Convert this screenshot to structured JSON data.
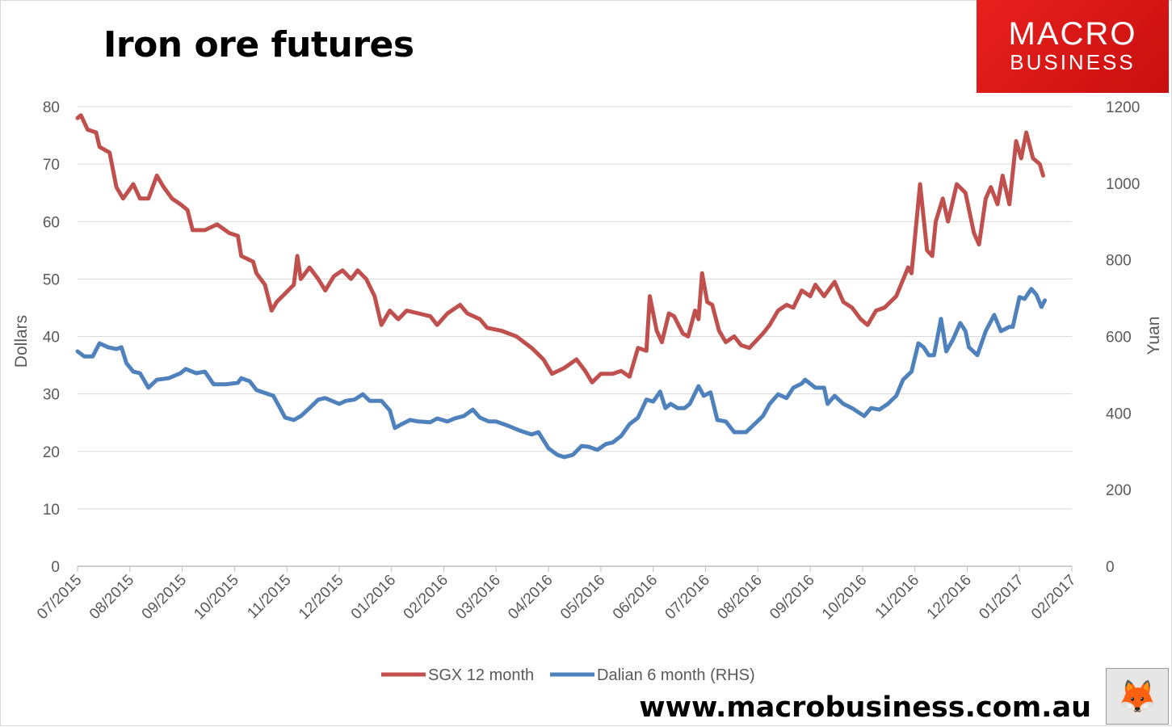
{
  "chart_data": {
    "type": "line",
    "title": "Iron ore futures",
    "ylabel": "Dollars",
    "y2label": "Yuan",
    "ylim": [
      0,
      80
    ],
    "y2lim": [
      0,
      1200
    ],
    "yticks": [
      0,
      10,
      20,
      30,
      40,
      50,
      60,
      70,
      80
    ],
    "y2ticks": [
      0,
      200,
      400,
      600,
      800,
      1000,
      1200
    ],
    "xlim": [
      "2015-07-01",
      "2017-02-01"
    ],
    "xticks": [
      "07/2015",
      "08/2015",
      "09/2015",
      "10/2015",
      "11/2015",
      "12/2015",
      "01/2016",
      "02/2016",
      "03/2016",
      "04/2016",
      "05/2016",
      "06/2016",
      "07/2016",
      "08/2016",
      "09/2016",
      "10/2016",
      "11/2016",
      "12/2016",
      "01/2017",
      "02/2017"
    ],
    "grid": true,
    "legend_position": "bottom",
    "series": [
      {
        "name": "SGX 12 month",
        "axis": "left",
        "color": "#c0504d",
        "points": [
          [
            "2015-07-01",
            78
          ],
          [
            "2015-07-03",
            78.5
          ],
          [
            "2015-07-07",
            76
          ],
          [
            "2015-07-12",
            75.5
          ],
          [
            "2015-07-14",
            73
          ],
          [
            "2015-07-20",
            72
          ],
          [
            "2015-07-24",
            66
          ],
          [
            "2015-07-28",
            64
          ],
          [
            "2015-08-03",
            66.5
          ],
          [
            "2015-08-07",
            64
          ],
          [
            "2015-08-12",
            64
          ],
          [
            "2015-08-17",
            68
          ],
          [
            "2015-08-21",
            66
          ],
          [
            "2015-08-26",
            64
          ],
          [
            "2015-08-31",
            63
          ],
          [
            "2015-09-04",
            62
          ],
          [
            "2015-09-07",
            58.5
          ],
          [
            "2015-09-14",
            58.5
          ],
          [
            "2015-09-21",
            59.5
          ],
          [
            "2015-09-28",
            58
          ],
          [
            "2015-10-03",
            57.5
          ],
          [
            "2015-10-05",
            54
          ],
          [
            "2015-10-12",
            53
          ],
          [
            "2015-10-14",
            51
          ],
          [
            "2015-10-19",
            49
          ],
          [
            "2015-10-23",
            44.5
          ],
          [
            "2015-10-26",
            46
          ],
          [
            "2015-10-31",
            47.5
          ],
          [
            "2015-11-05",
            49
          ],
          [
            "2015-11-07",
            54
          ],
          [
            "2015-11-09",
            50
          ],
          [
            "2015-11-14",
            52
          ],
          [
            "2015-11-19",
            50
          ],
          [
            "2015-11-23",
            48
          ],
          [
            "2015-11-28",
            50.5
          ],
          [
            "2015-12-03",
            51.5
          ],
          [
            "2015-12-08",
            50
          ],
          [
            "2015-12-12",
            51.5
          ],
          [
            "2015-12-17",
            50
          ],
          [
            "2015-12-22",
            47
          ],
          [
            "2015-12-26",
            42
          ],
          [
            "2015-12-31",
            44.5
          ],
          [
            "2016-01-05",
            43
          ],
          [
            "2016-01-10",
            44.5
          ],
          [
            "2016-01-17",
            44
          ],
          [
            "2016-01-24",
            43.5
          ],
          [
            "2016-01-28",
            42
          ],
          [
            "2016-02-03",
            44
          ],
          [
            "2016-02-10",
            45.5
          ],
          [
            "2016-02-14",
            44
          ],
          [
            "2016-02-21",
            43
          ],
          [
            "2016-02-25",
            41.5
          ],
          [
            "2016-03-04",
            41
          ],
          [
            "2016-03-13",
            40
          ],
          [
            "2016-03-22",
            38
          ],
          [
            "2016-03-29",
            36
          ],
          [
            "2016-04-03",
            33.5
          ],
          [
            "2016-04-10",
            34.5
          ],
          [
            "2016-04-17",
            36
          ],
          [
            "2016-04-22",
            34
          ],
          [
            "2016-04-26",
            32
          ],
          [
            "2016-05-01",
            33.5
          ],
          [
            "2016-05-08",
            33.5
          ],
          [
            "2016-05-13",
            34
          ],
          [
            "2016-05-18",
            33
          ],
          [
            "2016-05-23",
            38
          ],
          [
            "2016-05-28",
            37.5
          ],
          [
            "2016-05-30",
            47
          ],
          [
            "2016-06-03",
            41
          ],
          [
            "2016-06-06",
            39
          ],
          [
            "2016-06-10",
            44
          ],
          [
            "2016-06-13",
            43.5
          ],
          [
            "2016-06-18",
            40.5
          ],
          [
            "2016-06-21",
            40
          ],
          [
            "2016-06-25",
            44.5
          ],
          [
            "2016-06-27",
            43
          ],
          [
            "2016-06-29",
            51
          ],
          [
            "2016-07-02",
            46
          ],
          [
            "2016-07-05",
            45.5
          ],
          [
            "2016-07-09",
            41
          ],
          [
            "2016-07-13",
            39
          ],
          [
            "2016-07-18",
            40
          ],
          [
            "2016-07-22",
            38.5
          ],
          [
            "2016-07-27",
            38
          ],
          [
            "2016-08-04",
            40.5
          ],
          [
            "2016-08-08",
            42
          ],
          [
            "2016-08-13",
            44.5
          ],
          [
            "2016-08-18",
            45.5
          ],
          [
            "2016-08-22",
            45
          ],
          [
            "2016-08-27",
            48
          ],
          [
            "2016-09-01",
            47
          ],
          [
            "2016-09-04",
            49
          ],
          [
            "2016-09-09",
            47
          ],
          [
            "2016-09-15",
            49.5
          ],
          [
            "2016-09-20",
            46
          ],
          [
            "2016-09-25",
            45
          ],
          [
            "2016-09-30",
            43
          ],
          [
            "2016-10-04",
            42
          ],
          [
            "2016-10-09",
            44.5
          ],
          [
            "2016-10-14",
            45
          ],
          [
            "2016-10-21",
            47
          ],
          [
            "2016-10-28",
            52
          ],
          [
            "2016-10-30",
            51
          ],
          [
            "2016-11-04",
            66.5
          ],
          [
            "2016-11-08",
            55
          ],
          [
            "2016-11-11",
            54
          ],
          [
            "2016-11-13",
            60
          ],
          [
            "2016-11-17",
            64
          ],
          [
            "2016-11-20",
            60
          ],
          [
            "2016-11-25",
            66.5
          ],
          [
            "2016-11-30",
            65
          ],
          [
            "2016-12-05",
            58
          ],
          [
            "2016-12-08",
            56
          ],
          [
            "2016-12-12",
            64
          ],
          [
            "2016-12-15",
            66
          ],
          [
            "2016-12-19",
            63
          ],
          [
            "2016-12-22",
            68
          ],
          [
            "2016-12-26",
            63
          ],
          [
            "2016-12-30",
            74
          ],
          [
            "2017-01-02",
            71
          ],
          [
            "2017-01-05",
            75.5
          ],
          [
            "2017-01-09",
            71
          ],
          [
            "2017-01-13",
            70
          ],
          [
            "2017-01-15",
            68
          ]
        ]
      },
      {
        "name": "Dalian 6 month (RHS)",
        "axis": "right",
        "color": "#4f81bd",
        "points": [
          [
            "2015-07-01",
            561
          ],
          [
            "2015-07-05",
            548
          ],
          [
            "2015-07-10",
            548
          ],
          [
            "2015-07-14",
            582
          ],
          [
            "2015-07-19",
            572
          ],
          [
            "2015-07-24",
            567
          ],
          [
            "2015-07-27",
            572
          ],
          [
            "2015-07-30",
            530
          ],
          [
            "2015-08-03",
            508
          ],
          [
            "2015-08-07",
            504
          ],
          [
            "2015-08-12",
            466
          ],
          [
            "2015-08-17",
            487
          ],
          [
            "2015-08-24",
            491
          ],
          [
            "2015-08-31",
            504
          ],
          [
            "2015-09-03",
            515
          ],
          [
            "2015-09-09",
            504
          ],
          [
            "2015-09-14",
            508
          ],
          [
            "2015-09-19",
            475
          ],
          [
            "2015-09-26",
            475
          ],
          [
            "2015-10-03",
            479
          ],
          [
            "2015-10-05",
            491
          ],
          [
            "2015-10-10",
            483
          ],
          [
            "2015-10-14",
            460
          ],
          [
            "2015-10-24",
            445
          ],
          [
            "2015-10-31",
            388
          ],
          [
            "2015-11-05",
            382
          ],
          [
            "2015-11-09",
            392
          ],
          [
            "2015-11-14",
            413
          ],
          [
            "2015-11-19",
            435
          ],
          [
            "2015-11-23",
            439
          ],
          [
            "2015-12-01",
            424
          ],
          [
            "2015-12-05",
            432
          ],
          [
            "2015-12-10",
            435
          ],
          [
            "2015-12-15",
            449
          ],
          [
            "2015-12-19",
            432
          ],
          [
            "2015-12-26",
            432
          ],
          [
            "2015-12-31",
            407
          ],
          [
            "2016-01-03",
            361
          ],
          [
            "2016-01-07",
            371
          ],
          [
            "2016-01-12",
            382
          ],
          [
            "2016-01-17",
            378
          ],
          [
            "2016-01-24",
            376
          ],
          [
            "2016-01-28",
            386
          ],
          [
            "2016-02-03",
            378
          ],
          [
            "2016-02-07",
            386
          ],
          [
            "2016-02-12",
            392
          ],
          [
            "2016-02-17",
            409
          ],
          [
            "2016-02-21",
            388
          ],
          [
            "2016-02-26",
            378
          ],
          [
            "2016-03-01",
            378
          ],
          [
            "2016-03-08",
            367
          ],
          [
            "2016-03-15",
            354
          ],
          [
            "2016-03-22",
            344
          ],
          [
            "2016-03-26",
            350
          ],
          [
            "2016-04-01",
            308
          ],
          [
            "2016-04-06",
            291
          ],
          [
            "2016-04-10",
            285
          ],
          [
            "2016-04-15",
            291
          ],
          [
            "2016-04-20",
            314
          ],
          [
            "2016-04-24",
            312
          ],
          [
            "2016-04-29",
            304
          ],
          [
            "2016-05-04",
            319
          ],
          [
            "2016-05-08",
            323
          ],
          [
            "2016-05-13",
            340
          ],
          [
            "2016-05-18",
            371
          ],
          [
            "2016-05-23",
            388
          ],
          [
            "2016-05-28",
            435
          ],
          [
            "2016-06-01",
            430
          ],
          [
            "2016-06-05",
            456
          ],
          [
            "2016-06-08",
            413
          ],
          [
            "2016-06-11",
            424
          ],
          [
            "2016-06-15",
            413
          ],
          [
            "2016-06-19",
            413
          ],
          [
            "2016-06-22",
            424
          ],
          [
            "2016-06-27",
            470
          ],
          [
            "2016-06-30",
            445
          ],
          [
            "2016-07-04",
            454
          ],
          [
            "2016-07-08",
            382
          ],
          [
            "2016-07-13",
            378
          ],
          [
            "2016-07-18",
            350
          ],
          [
            "2016-07-25",
            350
          ],
          [
            "2016-07-30",
            371
          ],
          [
            "2016-08-04",
            392
          ],
          [
            "2016-08-08",
            424
          ],
          [
            "2016-08-13",
            449
          ],
          [
            "2016-08-18",
            439
          ],
          [
            "2016-08-22",
            466
          ],
          [
            "2016-08-27",
            477
          ],
          [
            "2016-08-29",
            487
          ],
          [
            "2016-09-04",
            466
          ],
          [
            "2016-09-09",
            466
          ],
          [
            "2016-09-11",
            424
          ],
          [
            "2016-09-15",
            445
          ],
          [
            "2016-09-20",
            424
          ],
          [
            "2016-09-25",
            413
          ],
          [
            "2016-10-02",
            392
          ],
          [
            "2016-10-06",
            413
          ],
          [
            "2016-10-11",
            409
          ],
          [
            "2016-10-16",
            424
          ],
          [
            "2016-10-21",
            445
          ],
          [
            "2016-10-25",
            487
          ],
          [
            "2016-10-30",
            508
          ],
          [
            "2016-11-03",
            582
          ],
          [
            "2016-11-06",
            572
          ],
          [
            "2016-11-09",
            551
          ],
          [
            "2016-11-12",
            551
          ],
          [
            "2016-11-16",
            646
          ],
          [
            "2016-11-19",
            561
          ],
          [
            "2016-11-23",
            593
          ],
          [
            "2016-11-27",
            635
          ],
          [
            "2016-11-30",
            614
          ],
          [
            "2016-12-02",
            572
          ],
          [
            "2016-12-07",
            551
          ],
          [
            "2016-12-12",
            614
          ],
          [
            "2016-12-17",
            656
          ],
          [
            "2016-12-21",
            614
          ],
          [
            "2016-12-26",
            625
          ],
          [
            "2016-12-28",
            625
          ],
          [
            "2017-01-01",
            703
          ],
          [
            "2017-01-04",
            698
          ],
          [
            "2017-01-08",
            724
          ],
          [
            "2017-01-11",
            709
          ],
          [
            "2017-01-14",
            677
          ],
          [
            "2017-01-16",
            694
          ]
        ]
      }
    ]
  },
  "logo": {
    "line1": "MACRO",
    "line2": "BUSINESS"
  },
  "footer": {
    "website": "www.macrobusiness.com.au"
  },
  "colors": {
    "grid": "#d9d9d9",
    "axis": "#bfbfbf",
    "logo_bg": "#e01b1b"
  },
  "icons": {
    "footer_image": "fox-icon"
  }
}
